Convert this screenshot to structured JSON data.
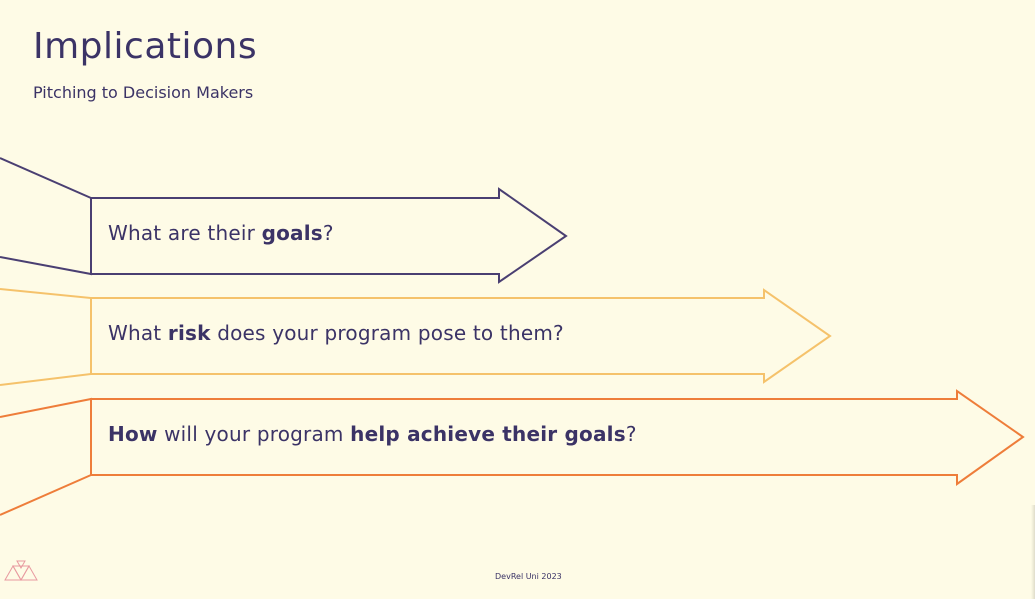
{
  "slide": {
    "title": "Implications",
    "subtitle": "Pitching to Decision Makers",
    "footer": "DevRel Uni 2023"
  },
  "arrows": [
    {
      "parts": [
        {
          "text": "What are their ",
          "bold": false
        },
        {
          "text": "goals",
          "bold": true
        },
        {
          "text": "?",
          "bold": false
        }
      ],
      "color": "#4a3f72"
    },
    {
      "parts": [
        {
          "text": "What ",
          "bold": false
        },
        {
          "text": "risk",
          "bold": true
        },
        {
          "text": " does your program pose to them?",
          "bold": false
        }
      ],
      "color": "#f5c26b"
    },
    {
      "parts": [
        {
          "text": "How",
          "bold": true
        },
        {
          "text": " will your program ",
          "bold": false
        },
        {
          "text": "help achieve their goals",
          "bold": true
        },
        {
          "text": "?",
          "bold": false
        }
      ],
      "color": "#ee7d3a"
    }
  ],
  "colors": {
    "background": "#fefbe6",
    "text": "#3b3366",
    "logo": "#e89aa0"
  },
  "icons": {
    "logo": "devrel-uni-triangles-logo"
  }
}
